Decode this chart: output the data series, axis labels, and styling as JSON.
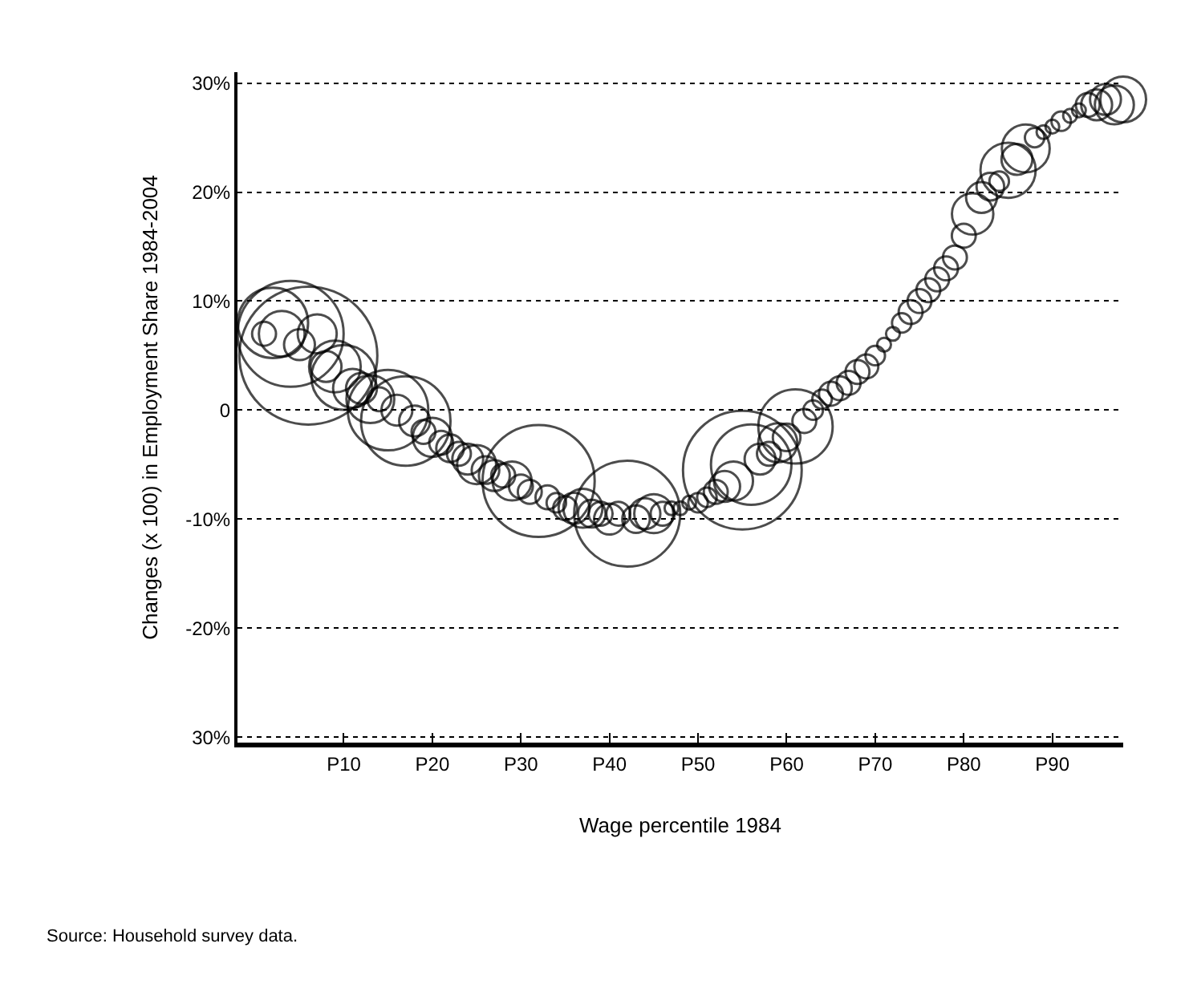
{
  "chart_data": {
    "type": "bubble",
    "xlabel": "Wage percentile 1984",
    "ylabel": "Changes (x 100) in Employment Share 1984-2004",
    "annotations": [
      "Source: Household survey data."
    ],
    "categories": [
      null,
      null,
      null,
      null,
      null,
      null,
      null,
      null,
      null,
      "P10",
      null,
      null,
      null,
      null,
      null,
      null,
      null,
      null,
      null,
      "P20",
      null,
      null,
      null,
      null,
      null,
      null,
      null,
      null,
      null,
      "P30",
      null,
      null,
      null,
      null,
      null,
      null,
      null,
      null,
      null,
      "P40",
      null,
      null,
      null,
      null,
      null,
      null,
      null,
      null,
      null,
      "P50",
      null,
      null,
      null,
      null,
      null,
      null,
      null,
      null,
      null,
      "P60",
      null,
      null,
      null,
      null,
      null,
      null,
      null,
      null,
      null,
      "P70",
      null,
      null,
      null,
      null,
      null,
      null,
      null,
      null,
      null,
      "P80",
      null,
      null,
      null,
      null,
      null,
      null,
      null,
      null,
      null,
      "P90",
      null,
      null,
      null,
      null,
      null,
      null,
      null,
      null
    ],
    "values": [
      7,
      8,
      7,
      7,
      6,
      5,
      7,
      4,
      4,
      3,
      2,
      2,
      1,
      1,
      0,
      0,
      -1,
      -1,
      -2,
      -2.5,
      -3,
      -3.5,
      -4,
      -4.5,
      -5,
      -5.5,
      -6,
      -6,
      -6.5,
      -7,
      -7.5,
      -6.5,
      -8,
      -8.5,
      -9,
      -9,
      -9,
      -9.5,
      -9.5,
      -10,
      -9.5,
      -9.5,
      -10,
      -9.5,
      -9.5,
      -9.5,
      -9,
      -9,
      -8.5,
      -8.5,
      -8,
      -7.5,
      -7,
      -6.5,
      -5.5,
      -5,
      -4.5,
      -4,
      -3,
      -2.5,
      -1.5,
      -1,
      0,
      1,
      1.5,
      2,
      2.5,
      3.5,
      4,
      5,
      6,
      7,
      8,
      9,
      10,
      11,
      12,
      13,
      14,
      16,
      18,
      19.5,
      20.5,
      21,
      22,
      23,
      24,
      25,
      25.5,
      26,
      26.5,
      27,
      27.5,
      28,
      28,
      28.5,
      28,
      28.5
    ],
    "sizes": [
      0.03,
      0.26,
      0.11,
      0.59,
      0.05,
      1,
      0.08,
      0.05,
      0.14,
      0.22,
      0.08,
      0.05,
      0.12,
      0.03,
      0.34,
      0.05,
      0.42,
      0.05,
      0.03,
      0.08,
      0.03,
      0.04,
      0.03,
      0.05,
      0.08,
      0.04,
      0.05,
      0.03,
      0.08,
      0.03,
      0.03,
      0.66,
      0.03,
      0.02,
      0.03,
      0.05,
      0.08,
      0.04,
      0.03,
      0.05,
      0.03,
      0.59,
      0.04,
      0.05,
      0.08,
      0.03,
      0.01,
      0.01,
      0.01,
      0.02,
      0.02,
      0.03,
      0.05,
      0.08,
      0.74,
      0.34,
      0.05,
      0.03,
      0.08,
      0.04,
      0.29,
      0.03,
      0.02,
      0.02,
      0.03,
      0.03,
      0.03,
      0.03,
      0.03,
      0.02,
      0.01,
      0.01,
      0.02,
      0.03,
      0.03,
      0.03,
      0.03,
      0.03,
      0.03,
      0.03,
      0.09,
      0.05,
      0.04,
      0.02,
      0.16,
      0.05,
      0.12,
      0.02,
      0.01,
      0.01,
      0.02,
      0.01,
      0.01,
      0.03,
      0.05,
      0.05,
      0.08,
      0.11
    ],
    "color": "#000000",
    "marker": "circle",
    "grid": "y",
    "line_style": "dotted",
    "ylim": [
      -30.5,
      31
    ],
    "yticks": [
      {
        "value": -30,
        "label": "30%"
      },
      {
        "value": -20,
        "label": "-20%"
      },
      {
        "value": -10,
        "label": "-10%"
      },
      0,
      {
        "value": 10,
        "label": "10%"
      },
      {
        "value": 20,
        "label": "20%"
      },
      {
        "value": 30,
        "label": "30%"
      }
    ]
  }
}
